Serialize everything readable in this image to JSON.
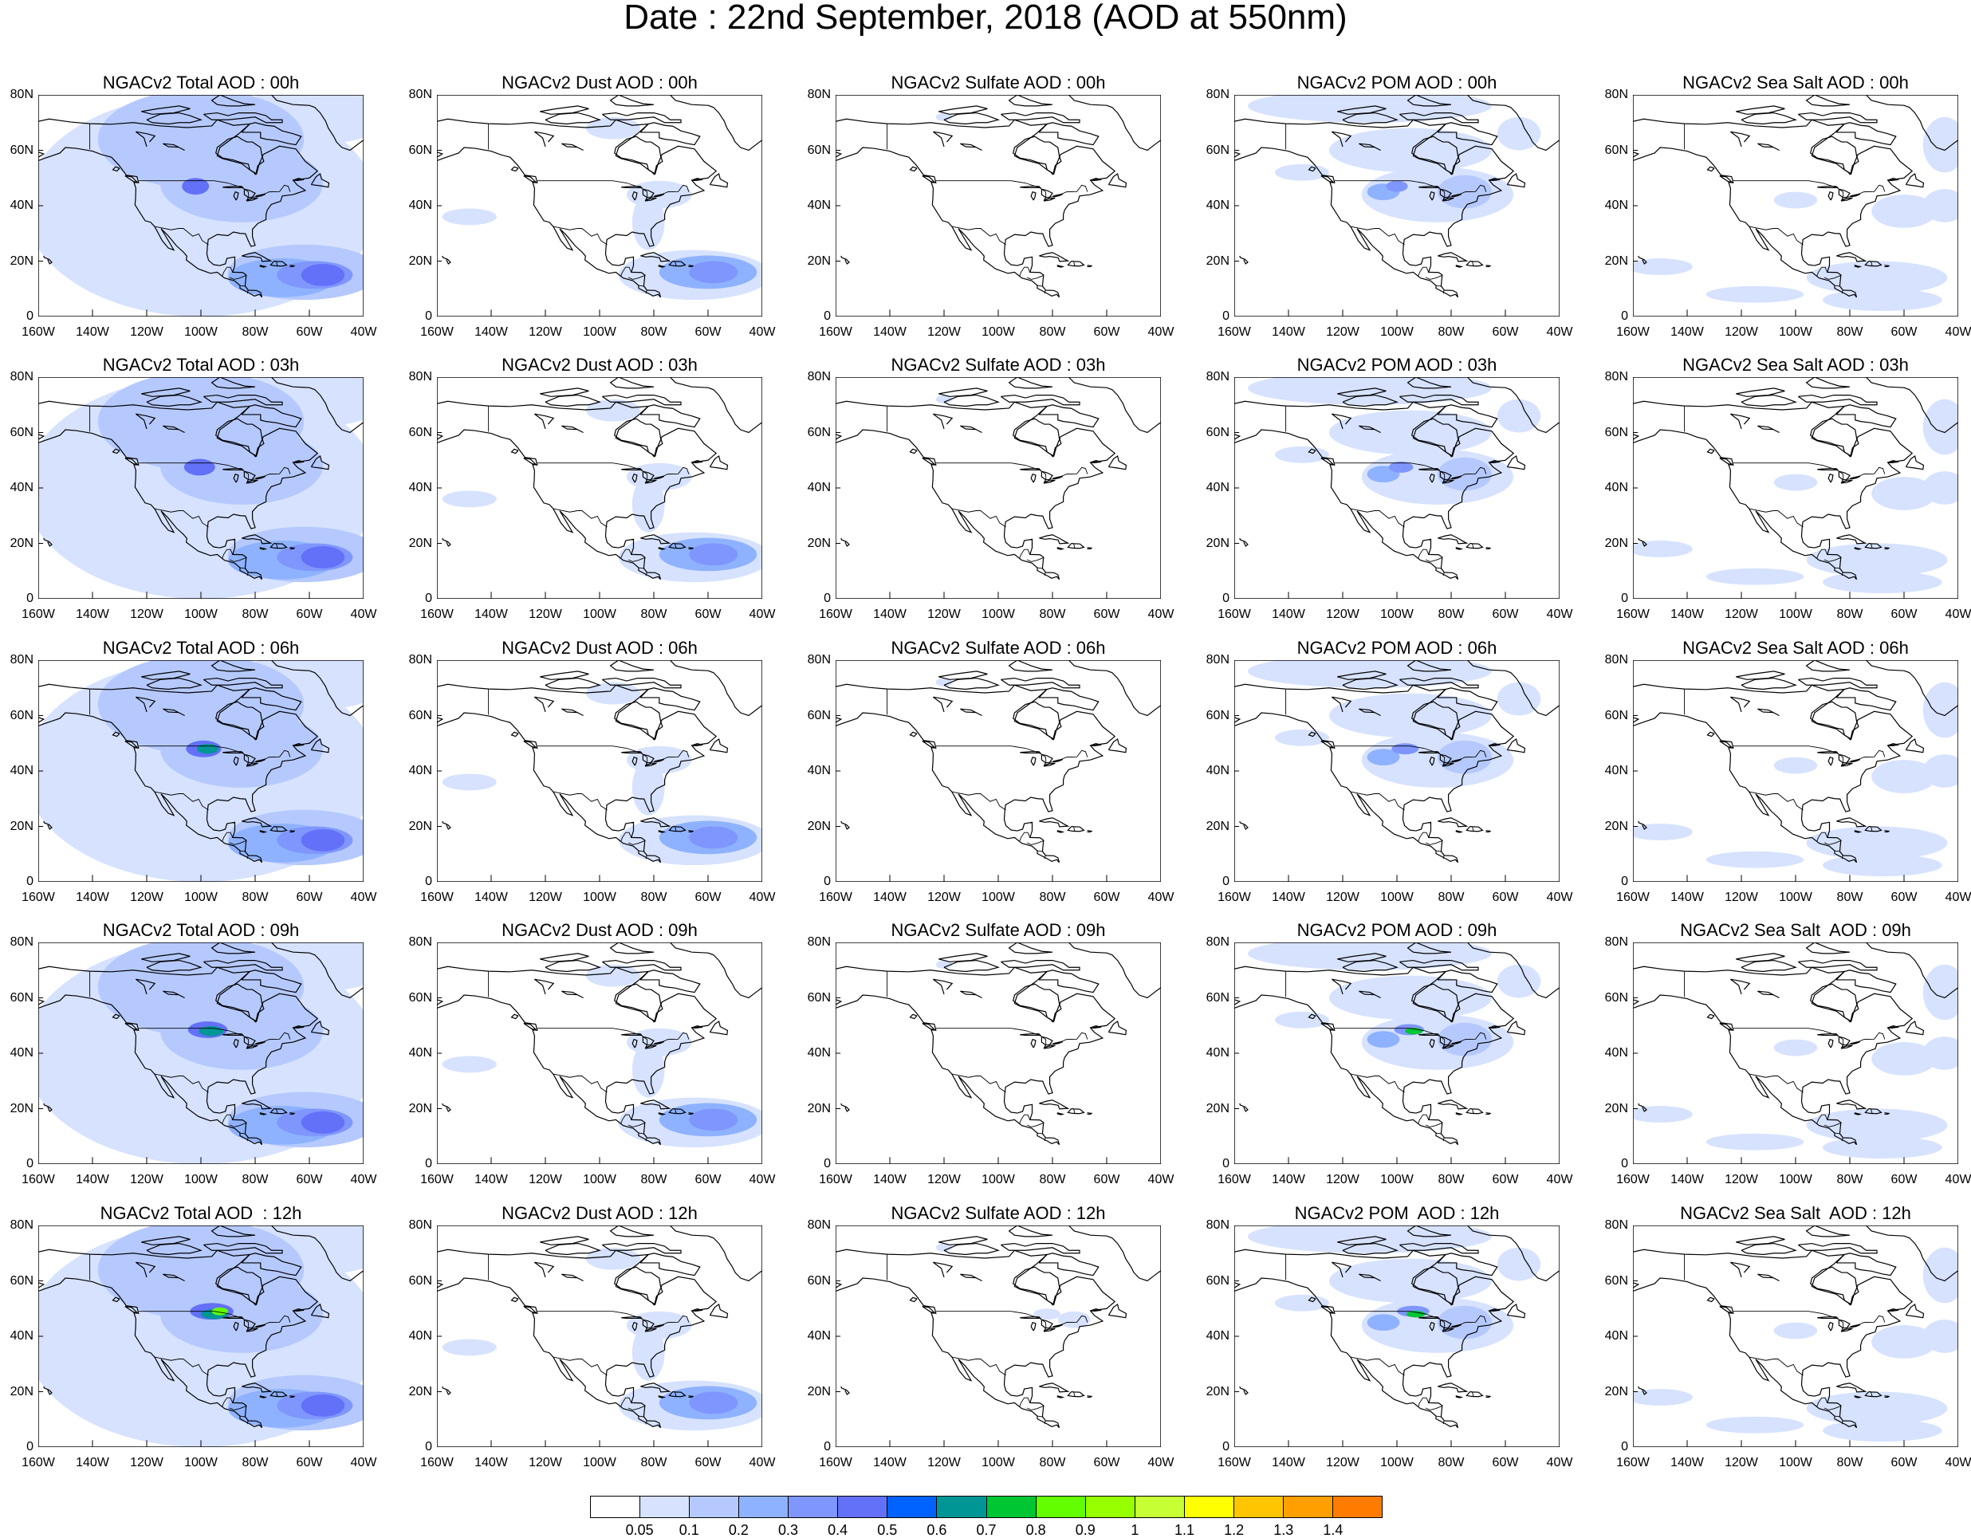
{
  "title": "Date : 22nd September, 2018 (AOD at 550nm)",
  "panel_titles": [
    [
      "NGACv2 Total AOD : 00h",
      "NGACv2 Dust AOD : 00h",
      "NGACv2 Sulfate AOD : 00h",
      "NGACv2 POM AOD : 00h",
      "NGACv2 Sea Salt AOD : 00h"
    ],
    [
      "NGACv2 Total AOD : 03h",
      "NGACv2 Dust AOD : 03h",
      "NGACv2 Sulfate AOD : 03h",
      "NGACv2 POM AOD : 03h",
      "NGACv2 Sea Salt AOD : 03h"
    ],
    [
      "NGACv2 Total AOD : 06h",
      "NGACv2 Dust AOD : 06h",
      "NGACv2 Sulfate AOD : 06h",
      "NGACv2 POM AOD : 06h",
      "NGACv2 Sea Salt AOD : 06h"
    ],
    [
      "NGACv2 Total AOD : 09h",
      "NGACv2 Dust AOD : 09h",
      "NGACv2 Sulfate AOD : 09h",
      "NGACv2 POM AOD : 09h",
      "NGACv2 Sea Salt  AOD : 09h"
    ],
    [
      "NGACv2 Total AOD  : 12h",
      "NGACv2 Dust AOD : 12h",
      "NGACv2 Sulfate AOD : 12h",
      "NGACv2 POM  AOD : 12h",
      "NGACv2 Sea Salt  AOD : 12h"
    ]
  ],
  "lat_ticks": [
    "80N",
    "60N",
    "40N",
    "20N",
    "0"
  ],
  "lon_ticks": [
    "160W",
    "140W",
    "120W",
    "100W",
    "80W",
    "60W",
    "40W"
  ],
  "map_extent": {
    "lon": [
      -160,
      -40
    ],
    "lat": [
      0,
      80
    ]
  },
  "colorbar": {
    "labels": [
      "0.05",
      "0.1",
      "0.2",
      "0.3",
      "0.4",
      "0.5",
      "0.6",
      "0.7",
      "0.8",
      "0.9",
      "1",
      "1.1",
      "1.2",
      "1.3",
      "1.4"
    ],
    "colors": [
      "#ffffff",
      "#d6e2ff",
      "#b5c9ff",
      "#8eb2ff",
      "#7f96ff",
      "#6370f8",
      "#0063ff",
      "#009696",
      "#00c633",
      "#63ff00",
      "#96ff00",
      "#c6ff33",
      "#ffff00",
      "#ffc600",
      "#ffa000",
      "#ff7c00",
      "#ff1900"
    ]
  }
}
